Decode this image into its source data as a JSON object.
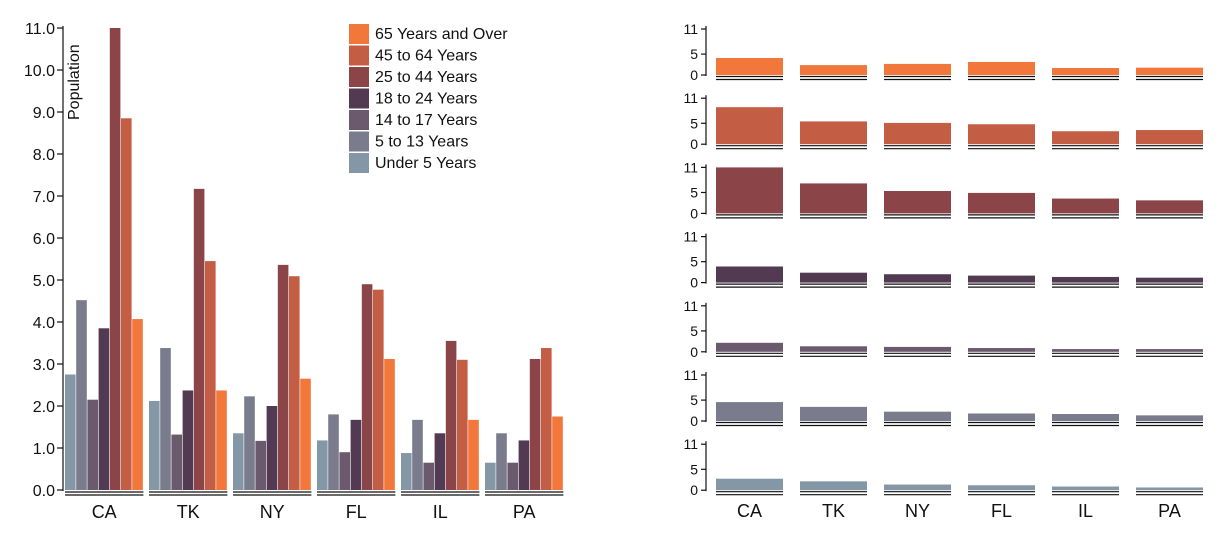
{
  "chart_data": [
    {
      "type": "bar",
      "categories": [
        "CA",
        "TK",
        "NY",
        "FL",
        "IL",
        "PA"
      ],
      "ylabel": "Population",
      "ylim": [
        0,
        11
      ],
      "yticks": [
        "0.0",
        "1.0",
        "2.0",
        "3.0",
        "4.0",
        "5.0",
        "6.0",
        "7.0",
        "8.0",
        "9.0",
        "10.0",
        "11.0"
      ],
      "legend_position": "top-center",
      "series": [
        {
          "name": "Under 5 Years",
          "color": "#8497a6",
          "values": [
            2.75,
            2.12,
            1.35,
            1.18,
            0.88,
            0.65
          ]
        },
        {
          "name": "5 to 13 Years",
          "color": "#7a7b8c",
          "values": [
            4.52,
            3.38,
            2.23,
            1.8,
            1.67,
            1.35
          ]
        },
        {
          "name": "14 to 17 Years",
          "color": "#6b5a6e",
          "values": [
            2.15,
            1.32,
            1.17,
            0.9,
            0.65,
            0.65
          ]
        },
        {
          "name": "18 to 24 Years",
          "color": "#523a53",
          "values": [
            3.85,
            2.37,
            2.0,
            1.67,
            1.35,
            1.18
          ]
        },
        {
          "name": "25 to 44 Years",
          "color": "#8b4548",
          "values": [
            11.0,
            7.17,
            5.36,
            4.9,
            3.55,
            3.12
          ]
        },
        {
          "name": "45 to 64 Years",
          "color": "#c35d44",
          "values": [
            8.85,
            5.45,
            5.09,
            4.77,
            3.1,
            3.38
          ]
        },
        {
          "name": "65 Years and Over",
          "color": "#f2773b",
          "values": [
            4.07,
            2.37,
            2.65,
            3.12,
            1.67,
            1.75
          ]
        }
      ],
      "legend_order": [
        "65 Years and Over",
        "45 to 64 Years",
        "25 to 44 Years",
        "18 to 24 Years",
        "14 to 17 Years",
        "5 to 13 Years",
        "Under 5 Years"
      ]
    },
    {
      "type": "bar",
      "layout": "small-multiples",
      "categories": [
        "CA",
        "TK",
        "NY",
        "FL",
        "IL",
        "PA"
      ],
      "ylim": [
        0,
        11
      ],
      "yticks": [
        "0",
        "5",
        "11"
      ],
      "panel_order": [
        "65 Years and Over",
        "45 to 64 Years",
        "25 to 44 Years",
        "18 to 24 Years",
        "14 to 17 Years",
        "5 to 13 Years",
        "Under 5 Years"
      ]
    }
  ]
}
